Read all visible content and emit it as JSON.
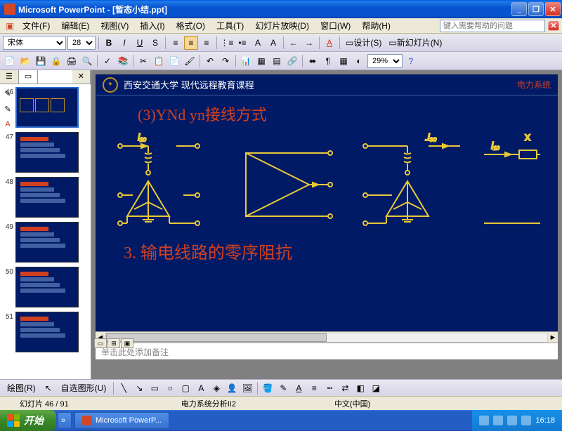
{
  "window": {
    "app": "Microsoft PowerPoint",
    "doc": "[暂态小结.ppt]"
  },
  "menu": {
    "file": "文件(F)",
    "edit": "编辑(E)",
    "view": "视图(V)",
    "insert": "插入(I)",
    "format": "格式(O)",
    "tools": "工具(T)",
    "slideshow": "幻灯片放映(D)",
    "window": "窗口(W)",
    "help": "帮助(H)",
    "help_search": "键入需要帮助的问题"
  },
  "toolbar": {
    "font": "宋体",
    "fontsize": "28",
    "zoom": "29%",
    "design": "设计(S)",
    "new_slide": "新幻灯片(N)"
  },
  "slidepanel": {
    "tab_outline": "☰",
    "tab_slides": "▭",
    "thumbs": [
      {
        "num": "46"
      },
      {
        "num": "47"
      },
      {
        "num": "48"
      },
      {
        "num": "49"
      },
      {
        "num": "50"
      },
      {
        "num": "51"
      }
    ]
  },
  "slide": {
    "university": "西安交通大学 现代远程教育课程",
    "course": "电力系统",
    "title": "(3)YNd yn接线方式",
    "subtitle": "3. 输电线路的零序阻抗",
    "colors": {
      "bg": "#001a66",
      "diagram": "#e8c838",
      "text_red": "#d04020"
    },
    "diagram_labels": {
      "i10_left": "İ₁₀",
      "i30": ".İ₃₀",
      "i10_right": "İ₁₀",
      "x": "X"
    }
  },
  "notes": {
    "placeholder": "单击此处添加备注"
  },
  "draw": {
    "draw_menu": "绘图(R)",
    "autoshape": "自选图形(U)"
  },
  "status": {
    "slide_of": "幻灯片 46 / 91",
    "template": "电力系统分析II2",
    "lang": "中文(中国)"
  },
  "taskbar": {
    "start": "开始",
    "task1": "Microsoft PowerP...",
    "time": "16:18"
  }
}
